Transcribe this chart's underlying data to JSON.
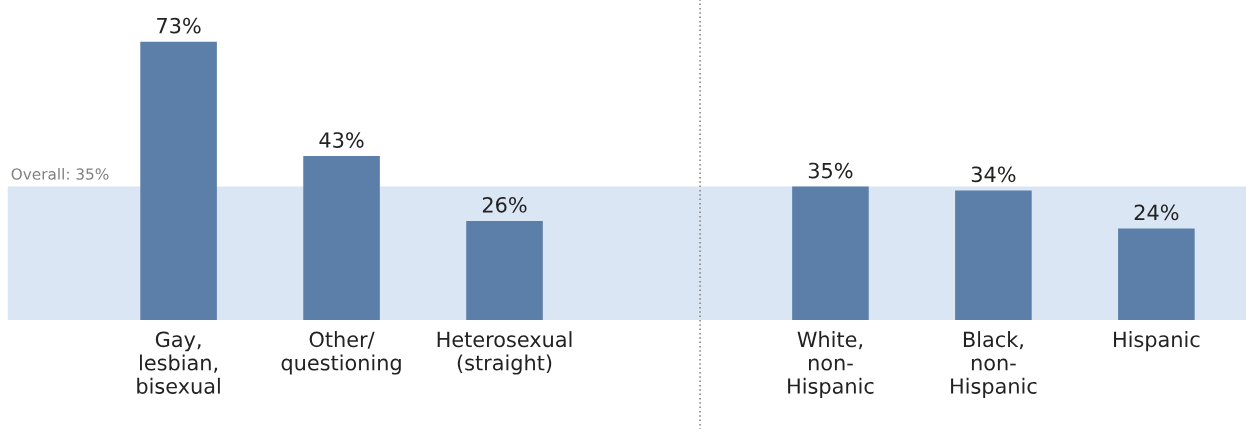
{
  "chart_data": {
    "type": "bar",
    "categories": [
      "Gay,\nlesbian,\nbisexual",
      "Other/\nquestioning",
      "Heterosexual\n(straight)",
      null,
      "White,\nnon-\nHispanic",
      "Black,\nnon-\nHispanic",
      "Hispanic"
    ],
    "values": [
      73,
      43,
      26,
      null,
      35,
      34,
      24
    ],
    "value_labels": [
      "73%",
      "43%",
      "26%",
      null,
      "35%",
      "34%",
      "24%"
    ],
    "color": "#5b7fa8",
    "bands": [
      {
        "axis": "y",
        "from": 0,
        "to": 35,
        "label": "Overall: 35%",
        "color": "#dae6f3"
      }
    ],
    "grid": false,
    "legend": false
  }
}
